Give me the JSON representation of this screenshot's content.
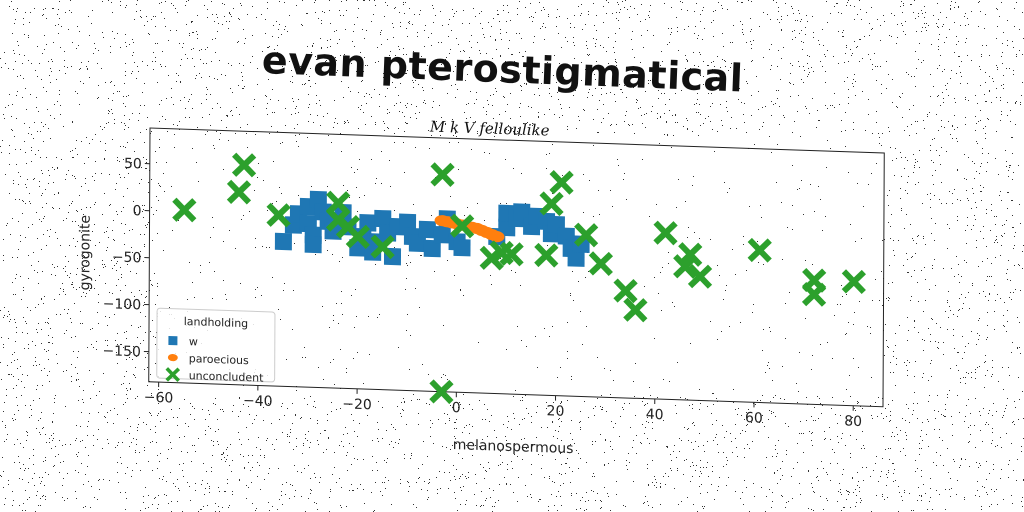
{
  "chart_data": {
    "type": "scatter",
    "title": "evan pterostigmatical",
    "subtitle": "M k V felloulike",
    "xlabel": "melanospermous",
    "ylabel": "gyrogonite",
    "xlim": [
      -62,
      86
    ],
    "ylim": [
      -182,
      88
    ],
    "xticks": [
      -60,
      -40,
      -20,
      0,
      20,
      40,
      60,
      80
    ],
    "xtick_labels": [
      "−60",
      "−40",
      "−20",
      "0",
      "20",
      "40",
      "60",
      "80"
    ],
    "yticks": [
      50,
      0,
      -50,
      -100,
      -150
    ],
    "ytick_labels": [
      "50",
      "0",
      "−50",
      "−100",
      "−150"
    ],
    "grid": false,
    "legend": {
      "title": "landholding",
      "placement": "lower-left",
      "entries": [
        "w",
        "paroecious",
        "unconcludent"
      ]
    },
    "series": [
      {
        "name": "w",
        "marker": "square",
        "color": "#1f77b4",
        "points": [
          [
            -35,
            -28
          ],
          [
            -33,
            -10
          ],
          [
            -32,
            2
          ],
          [
            -30,
            10
          ],
          [
            -30,
            -8
          ],
          [
            -29,
            -20
          ],
          [
            -29,
            -30
          ],
          [
            -28,
            18
          ],
          [
            -27,
            5
          ],
          [
            -26,
            -5
          ],
          [
            -25,
            -15
          ],
          [
            -23,
            5
          ],
          [
            -22,
            -10
          ],
          [
            -20,
            -32
          ],
          [
            -19,
            -20
          ],
          [
            -18,
            -5
          ],
          [
            -17,
            -36
          ],
          [
            -16,
            -25
          ],
          [
            -15,
            0
          ],
          [
            -14,
            -15
          ],
          [
            -13,
            -40
          ],
          [
            -12,
            -8
          ],
          [
            -10,
            -3
          ],
          [
            -9,
            -18
          ],
          [
            -8,
            -25
          ],
          [
            -6,
            -10
          ],
          [
            -5,
            -30
          ],
          [
            -3,
            -15
          ],
          [
            -2,
            2
          ],
          [
            0,
            -22
          ],
          [
            1,
            -28
          ],
          [
            8,
            -15
          ],
          [
            10,
            -5
          ],
          [
            10,
            10
          ],
          [
            12,
            5
          ],
          [
            13,
            12
          ],
          [
            15,
            -3
          ],
          [
            16,
            8
          ],
          [
            18,
            3
          ],
          [
            19,
            -10
          ],
          [
            20,
            0
          ],
          [
            22,
            -12
          ],
          [
            23,
            -25
          ],
          [
            24,
            -35
          ],
          [
            25,
            -20
          ]
        ]
      },
      {
        "name": "paroecious",
        "marker": "circle",
        "color": "#ff7f0e",
        "points": [
          [
            -3,
            0
          ],
          [
            -2,
            -1
          ],
          [
            -1,
            -2
          ],
          [
            0,
            -3
          ],
          [
            1,
            -4
          ],
          [
            2,
            -5
          ],
          [
            3,
            -6
          ],
          [
            4,
            -7
          ],
          [
            5,
            -9
          ],
          [
            6,
            -11
          ],
          [
            7,
            -13
          ],
          [
            8,
            -15
          ]
        ]
      },
      {
        "name": "unconcludent",
        "marker": "x",
        "color": "#2ca02c",
        "points": [
          [
            -55,
            2
          ],
          [
            -43,
            52
          ],
          [
            -44,
            23
          ],
          [
            -36,
            0
          ],
          [
            -24,
            15
          ],
          [
            -24,
            -3
          ],
          [
            -22,
            -10
          ],
          [
            -20,
            -20
          ],
          [
            -15,
            -30
          ],
          [
            -3,
            49
          ],
          [
            -3,
            -200
          ],
          [
            1,
            -5
          ],
          [
            7,
            -38
          ],
          [
            9,
            -32
          ],
          [
            11,
            -33
          ],
          [
            18,
            -33
          ],
          [
            19,
            22
          ],
          [
            21,
            45
          ],
          [
            26,
            -10
          ],
          [
            29,
            -40
          ],
          [
            34,
            -68
          ],
          [
            36,
            -88
          ],
          [
            42,
            -5
          ],
          [
            46,
            -40
          ],
          [
            47,
            -27
          ],
          [
            49,
            -50
          ],
          [
            61,
            -20
          ],
          [
            72,
            -50
          ],
          [
            72,
            -65
          ],
          [
            80,
            -50
          ]
        ]
      }
    ]
  }
}
